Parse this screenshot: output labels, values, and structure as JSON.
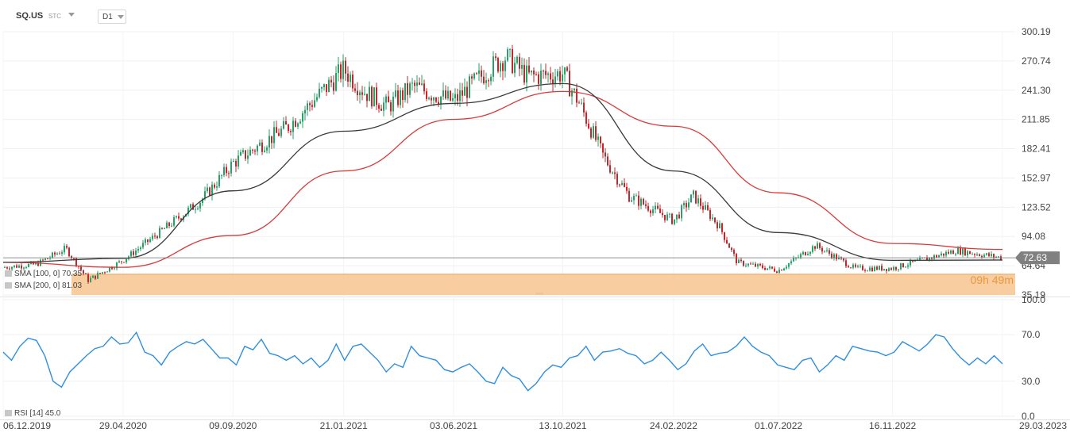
{
  "header": {
    "symbol": "SQ.US",
    "market": "STC",
    "timeframe": "D1"
  },
  "indicators": {
    "sma_fast": "SMA [100, 0]  70.35",
    "sma_slow": "SMA [200, 0]  81.03",
    "rsi": "RSI [14] 45.0"
  },
  "price": {
    "current": "72.63",
    "countdown": "09h 49m"
  },
  "colors": {
    "up": "#26a269",
    "down": "#c0282d",
    "sma_fast": "#3a3a3a",
    "sma_slow": "#d93a3a",
    "rsi": "#2f8fdf",
    "zone": "#f7c48f",
    "badge": "#808080"
  },
  "chart_data": [
    {
      "type": "candlestick",
      "price_axis_ticks": [
        "300.19",
        "270.74",
        "241.30",
        "211.85",
        "182.41",
        "152.97",
        "123.52",
        "94.08",
        "64.64",
        "35.19"
      ],
      "ylim": [
        35.19,
        300.19
      ],
      "x_axis_ticks": [
        "06.12.2019",
        "29.04.2020",
        "09.09.2020",
        "21.01.2021",
        "03.06.2021",
        "13.10.2021",
        "24.02.2022",
        "01.07.2022",
        "16.11.2022",
        "29.03.2023"
      ],
      "series": [
        {
          "name": "SQ.US",
          "x": [
            "06.12.2019",
            "15.01.2020",
            "20.02.2020",
            "18.03.2020",
            "29.04.2020",
            "15.06.2020",
            "01.08.2020",
            "09.09.2020",
            "15.11.2020",
            "21.01.2021",
            "15.02.2021",
            "15.03.2021",
            "15.04.2021",
            "03.06.2021",
            "15.07.2021",
            "05.08.2021",
            "01.09.2021",
            "13.10.2021",
            "01.11.2021",
            "01.12.2021",
            "01.01.2022",
            "24.02.2022",
            "20.03.2022",
            "20.04.2022",
            "12.05.2022",
            "01.07.2022",
            "15.08.2022",
            "01.10.2022",
            "16.11.2022",
            "01.02.2023",
            "29.03.2023"
          ],
          "close": [
            63,
            66,
            82,
            50,
            70,
            100,
            130,
            168,
            205,
            262,
            240,
            225,
            245,
            230,
            262,
            275,
            255,
            258,
            230,
            175,
            135,
            110,
            135,
            105,
            68,
            60,
            85,
            62,
            62,
            80,
            72.63
          ]
        },
        {
          "name": "SMA [100, 0]",
          "x": [
            "06.12.2019",
            "29.04.2020",
            "09.09.2020",
            "21.01.2021",
            "03.06.2021",
            "13.10.2021",
            "24.02.2022",
            "01.07.2022",
            "16.11.2022",
            "29.03.2023"
          ],
          "values": [
            68,
            72,
            140,
            200,
            228,
            248,
            160,
            98,
            70,
            70.35
          ]
        },
        {
          "name": "SMA [200, 0]",
          "x": [
            "06.12.2019",
            "29.04.2020",
            "09.09.2020",
            "21.01.2021",
            "03.06.2021",
            "13.10.2021",
            "24.02.2022",
            "01.07.2022",
            "16.11.2022",
            "29.03.2023"
          ],
          "values": [
            68,
            63,
            95,
            160,
            212,
            240,
            205,
            138,
            87,
            81.03
          ]
        }
      ],
      "current_price": 72.63,
      "highlight_zone": [
        35.19,
        56.0
      ]
    },
    {
      "type": "line",
      "ylim": [
        0,
        100
      ],
      "rsi_axis_ticks": [
        "100.0",
        "70.0",
        "30.0",
        "0.0"
      ],
      "series": [
        {
          "name": "RSI [14]",
          "values": [
            55,
            48,
            60,
            67,
            65,
            52,
            30,
            25,
            38,
            45,
            52,
            58,
            60,
            68,
            62,
            63,
            72,
            55,
            52,
            44,
            55,
            60,
            64,
            62,
            66,
            58,
            50,
            50,
            44,
            60,
            57,
            66,
            54,
            52,
            48,
            52,
            45,
            50,
            42,
            48,
            62,
            48,
            60,
            62,
            55,
            48,
            38,
            45,
            42,
            60,
            52,
            50,
            48,
            40,
            38,
            42,
            45,
            38,
            30,
            28,
            42,
            35,
            32,
            22,
            28,
            38,
            44,
            42,
            50,
            52,
            60,
            48,
            55,
            56,
            58,
            54,
            52,
            45,
            48,
            55,
            48,
            40,
            45,
            56,
            62,
            52,
            54,
            55,
            60,
            68,
            60,
            55,
            52,
            44,
            42,
            40,
            48,
            50,
            38,
            44,
            52,
            48,
            60,
            58,
            56,
            55,
            52,
            55,
            64,
            60,
            56,
            62,
            70,
            68,
            58,
            50,
            44,
            50,
            45,
            52,
            45.0
          ]
        }
      ]
    }
  ]
}
